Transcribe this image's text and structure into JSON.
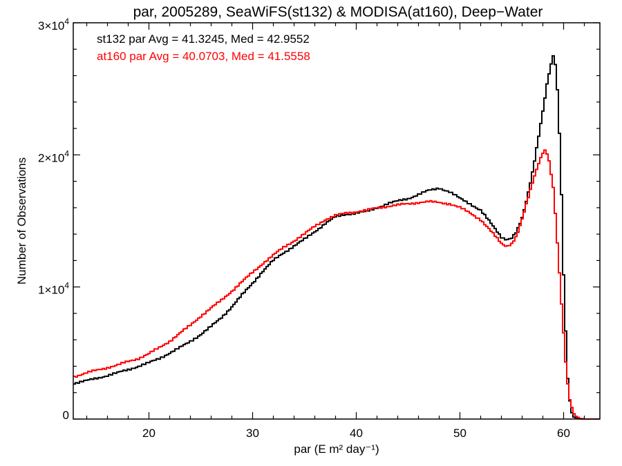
{
  "chart_data": {
    "type": "line",
    "title": "par, 2005289, SeaWiFS(st132) & MODISA(at160), Deep−Water",
    "xlabel": "par (E m² day⁻¹)",
    "ylabel": "Number of Observations",
    "xlim": [
      12.7,
      63.5
    ],
    "ylim": [
      0,
      30000
    ],
    "x_ticks": [
      {
        "value": 20,
        "label": "20"
      },
      {
        "value": 30,
        "label": "30"
      },
      {
        "value": 40,
        "label": "40"
      },
      {
        "value": 50,
        "label": "50"
      },
      {
        "value": 60,
        "label": "60"
      }
    ],
    "y_ticks": [
      {
        "value": 0,
        "label": "0",
        "mantissa": "0",
        "exponent": ""
      },
      {
        "value": 10000,
        "label": "1×10⁴",
        "mantissa": "1×10",
        "exponent": "4"
      },
      {
        "value": 20000,
        "label": "2×10⁴",
        "mantissa": "2×10",
        "exponent": "4"
      },
      {
        "value": 30000,
        "label": "3×10⁴",
        "mantissa": "3×10",
        "exponent": "4"
      }
    ],
    "legend_position": "top-left",
    "grid": false,
    "series": [
      {
        "name": "st132",
        "color": "#000000",
        "legend": "st132 par Avg = 41.3245, Med = 42.9552",
        "x": [
          12.7,
          14,
          15,
          16,
          17,
          18,
          19,
          20,
          21,
          22,
          23,
          24,
          25,
          26,
          27,
          28,
          29,
          30,
          31,
          32,
          33,
          34,
          35,
          36,
          37,
          38,
          39,
          40,
          41,
          42,
          43,
          44,
          45,
          46,
          47,
          48,
          49,
          50,
          51,
          52,
          53,
          54,
          54.5,
          55,
          55.5,
          56,
          56.5,
          57,
          57.5,
          58,
          58.5,
          58.8,
          59,
          59.2,
          59.5,
          59.8,
          60,
          60.3,
          60.5,
          60.8,
          61,
          61.5,
          62,
          63.5
        ],
        "y": [
          2700,
          2900,
          3100,
          3300,
          3500,
          3750,
          4000,
          4250,
          4600,
          5000,
          5400,
          5900,
          6400,
          7000,
          7700,
          8500,
          9400,
          10300,
          11200,
          12000,
          12600,
          13100,
          13600,
          14200,
          14800,
          15300,
          15500,
          15600,
          15700,
          16000,
          16300,
          16500,
          16700,
          17000,
          17300,
          17500,
          17200,
          16700,
          16300,
          15800,
          14800,
          13800,
          13600,
          13700,
          14200,
          15200,
          16800,
          18700,
          21000,
          23300,
          25800,
          26800,
          27500,
          26800,
          24000,
          17000,
          11000,
          4500,
          1800,
          500,
          150,
          20,
          0,
          0
        ]
      },
      {
        "name": "at160",
        "color": "#ff0000",
        "legend": "at160 par Avg = 40.0703, Med = 41.5558",
        "x": [
          12.7,
          14,
          15,
          16,
          17,
          18,
          19,
          20,
          21,
          22,
          23,
          24,
          25,
          26,
          27,
          28,
          29,
          30,
          31,
          32,
          33,
          34,
          35,
          36,
          37,
          38,
          39,
          40,
          41,
          42,
          43,
          44,
          45,
          46,
          47,
          48,
          49,
          50,
          51,
          52,
          53,
          54,
          54.5,
          55,
          55.5,
          56,
          56.5,
          57,
          57.5,
          58,
          58.3,
          58.6,
          59,
          59.3,
          59.6,
          60,
          60.3,
          60.6,
          61,
          61.5,
          62,
          63.5
        ],
        "y": [
          3200,
          3500,
          3700,
          3900,
          4100,
          4350,
          4600,
          4950,
          5400,
          5900,
          6500,
          7100,
          7800,
          8400,
          9000,
          9700,
          10400,
          11100,
          11800,
          12400,
          13000,
          13500,
          14000,
          14600,
          15100,
          15400,
          15600,
          15700,
          15800,
          16000,
          16100,
          16200,
          16300,
          16400,
          16450,
          16400,
          16300,
          16000,
          15600,
          15100,
          14200,
          13300,
          13100,
          13300,
          13900,
          15100,
          16500,
          17900,
          19200,
          20200,
          20400,
          19500,
          17500,
          14500,
          11000,
          6500,
          3300,
          1500,
          400,
          60,
          0,
          0
        ]
      }
    ]
  }
}
